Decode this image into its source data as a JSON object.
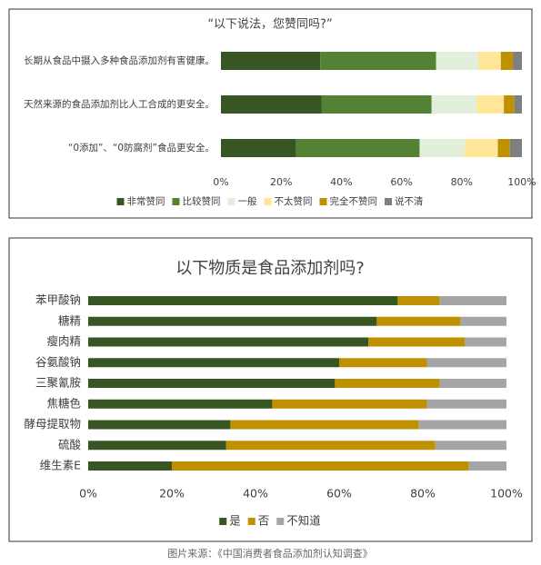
{
  "chart_data": [
    {
      "type": "stacked-bar-horizontal",
      "title": "“以下说法，您赞同吗?”",
      "categories": [
        "长期从食品中摄入多种食品添加剂有害健康。",
        "天然来源的食品添加剂比人工合成的更安全。",
        "“0添加”、“0防腐剂”食品更安全。"
      ],
      "series": [
        {
          "name": "非常赞同",
          "color": "#375623",
          "values": [
            33,
            33.5,
            25
          ]
        },
        {
          "name": "比较赞同",
          "color": "#548235",
          "values": [
            38.5,
            36.5,
            41
          ]
        },
        {
          "name": "一般",
          "color": "#e2efda",
          "values": [
            14,
            15,
            15
          ]
        },
        {
          "name": "不太赞同",
          "color": "#ffe699",
          "values": [
            7.5,
            9,
            11
          ]
        },
        {
          "name": "完全不赞同",
          "color": "#bf9000",
          "values": [
            4,
            3.5,
            4
          ]
        },
        {
          "name": "说不清",
          "color": "#7f7f7f",
          "values": [
            3,
            2.5,
            4
          ]
        }
      ],
      "xlim": [
        0,
        100
      ],
      "xticks": [
        {
          "value": 0,
          "label": "0%"
        },
        {
          "value": 20,
          "label": "20%"
        },
        {
          "value": 40,
          "label": "40%"
        },
        {
          "value": 60,
          "label": "60%"
        },
        {
          "value": 80,
          "label": "80%"
        },
        {
          "value": 100,
          "label": "100%"
        }
      ],
      "legend": "bottom"
    },
    {
      "type": "stacked-bar-horizontal",
      "title": "以下物质是食品添加剂吗?",
      "categories": [
        "苯甲酸钠",
        "糖精",
        "瘦肉精",
        "谷氨酸钠",
        "三聚氰胺",
        "焦糖色",
        "酵母提取物",
        "硫酸",
        "维生素E"
      ],
      "series": [
        {
          "name": "是",
          "color": "#375623",
          "values": [
            74,
            69,
            67,
            60,
            59,
            44,
            34,
            33,
            20
          ]
        },
        {
          "name": "否",
          "color": "#bf9000",
          "values": [
            10,
            20,
            23,
            21,
            25,
            37,
            45,
            50,
            71
          ]
        },
        {
          "name": "不知道",
          "color": "#a5a5a5",
          "values": [
            16,
            11,
            10,
            19,
            16,
            19,
            21,
            17,
            9
          ]
        }
      ],
      "xlim": [
        0,
        100
      ],
      "xticks": [
        {
          "value": 0,
          "label": "0%"
        },
        {
          "value": 20,
          "label": "20%"
        },
        {
          "value": 40,
          "label": "40%"
        },
        {
          "value": 60,
          "label": "60%"
        },
        {
          "value": 80,
          "label": "80%"
        },
        {
          "value": 100,
          "label": "100%"
        }
      ],
      "legend": "bottom"
    }
  ],
  "caption": "图片来源：《中国消费者食品添加剂认知调查》"
}
